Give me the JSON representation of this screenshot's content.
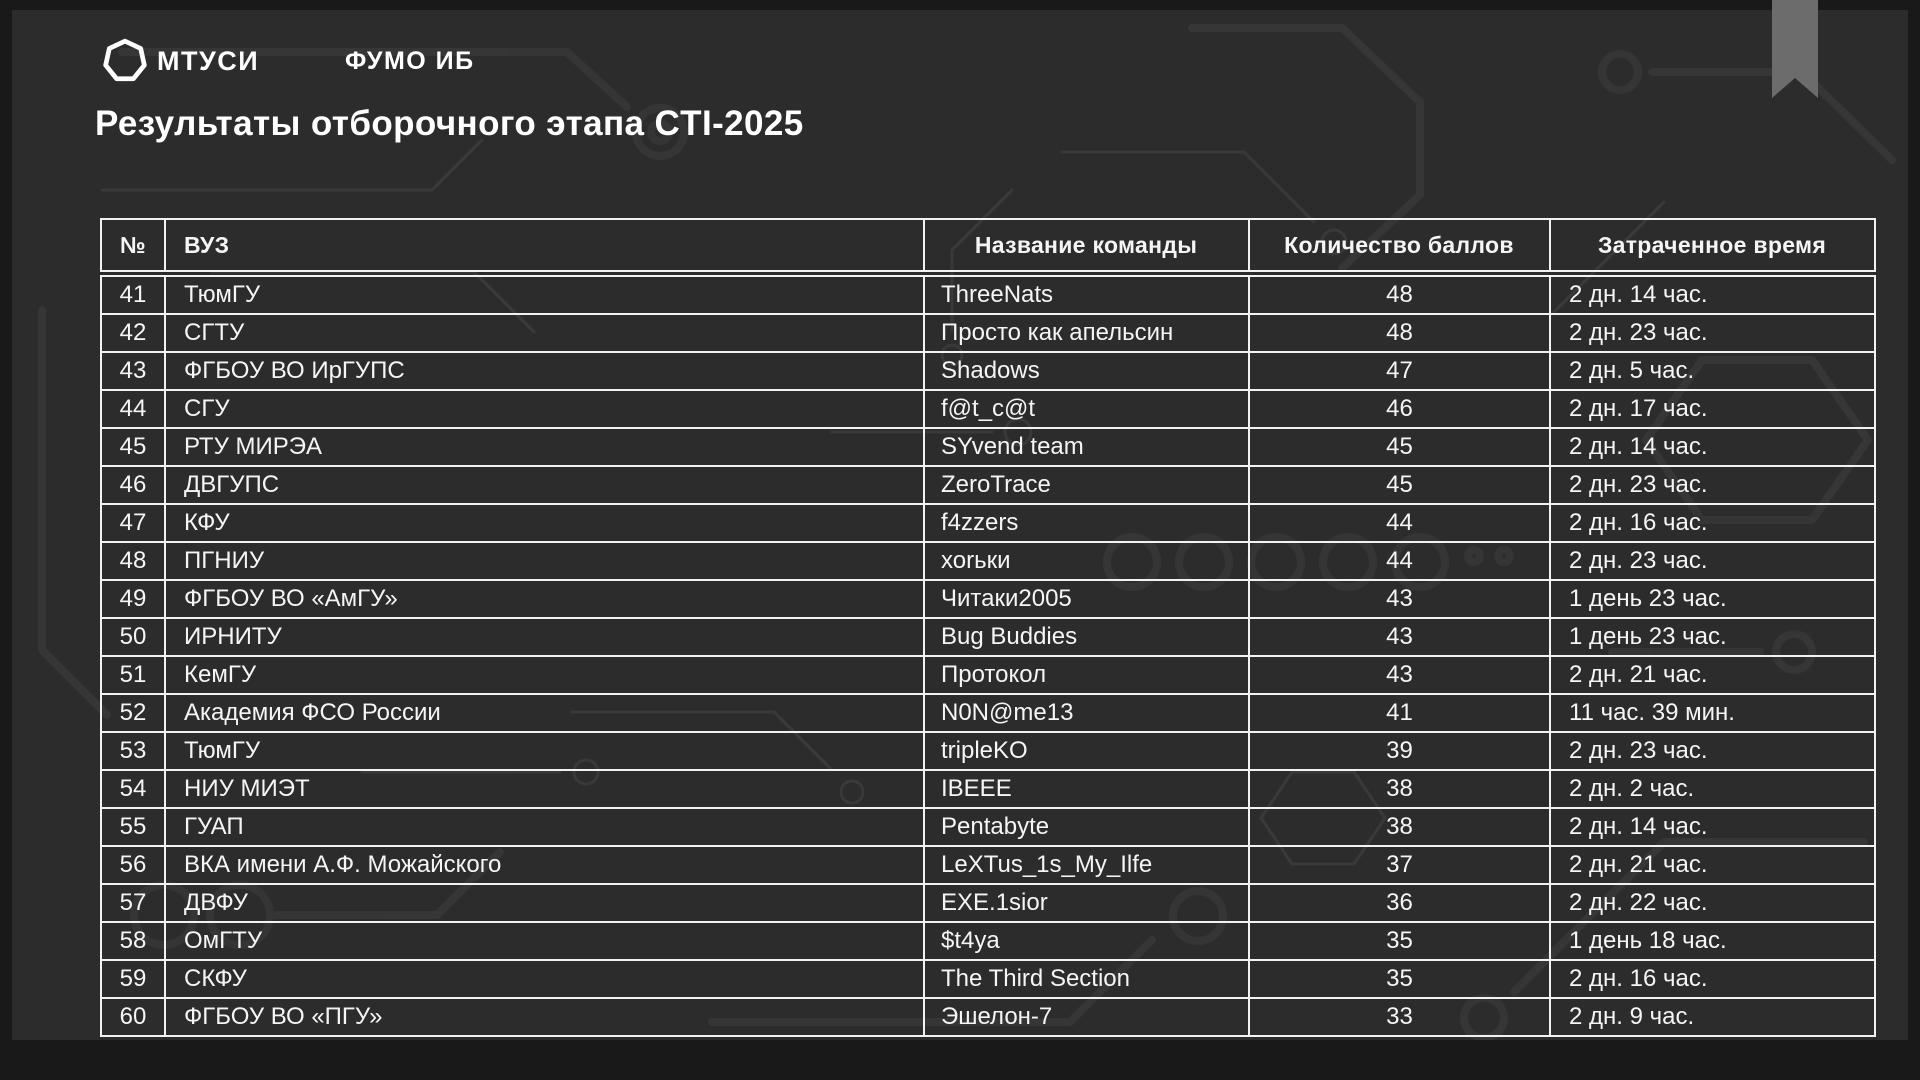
{
  "brand": {
    "logo_text": "МТУСИ",
    "division": "ФУМО ИБ"
  },
  "title": "Результаты отборочного этапа CTI-2025",
  "icons": {
    "logo": "heptagon-outline-icon",
    "bookmark": "bookmark-ribbon-icon"
  },
  "colors": {
    "background": "#2d2c2c",
    "frame": "#191919",
    "text": "#f5f5f5",
    "border": "#f2f2f2",
    "ribbon": "#6c6c6c",
    "pattern": "#3a3a3a"
  },
  "table": {
    "columns": {
      "num": "№",
      "university": "ВУЗ",
      "team": "Название команды",
      "score": "Количество баллов",
      "time": "Затраченное время"
    },
    "rows": [
      {
        "num": "41",
        "university": "ТюмГУ",
        "team": "ThreeNats",
        "score": "48",
        "time": "2 дн. 14 час."
      },
      {
        "num": "42",
        "university": "СГТУ",
        "team": "Просто как апельсин",
        "score": "48",
        "time": "2 дн. 23 час."
      },
      {
        "num": "43",
        "university": "ФГБОУ ВО ИрГУПС",
        "team": "Shadows",
        "score": "47",
        "time": "2 дн. 5 час."
      },
      {
        "num": "44",
        "university": "СГУ",
        "team": "f@t_c@t",
        "score": "46",
        "time": "2 дн. 17 час."
      },
      {
        "num": "45",
        "university": "РТУ МИРЭА",
        "team": "SYvend team",
        "score": "45",
        "time": "2 дн. 14 час."
      },
      {
        "num": "46",
        "university": "ДВГУПС",
        "team": "ZeroTrace",
        "score": "45",
        "time": "2 дн. 23 час."
      },
      {
        "num": "47",
        "university": "КФУ",
        "team": "f4zzers",
        "score": "44",
        "time": "2 дн. 16 час."
      },
      {
        "num": "48",
        "university": "ПГНИУ",
        "team": "хоrьки",
        "score": "44",
        "time": "2 дн. 23 час."
      },
      {
        "num": "49",
        "university": "ФГБОУ ВО «АмГУ»",
        "team": "Читаки2005",
        "score": "43",
        "time": "1 день 23 час."
      },
      {
        "num": "50",
        "university": "ИРНИТУ",
        "team": "Bug Buddies",
        "score": "43",
        "time": "1 день 23 час."
      },
      {
        "num": "51",
        "university": "КемГУ",
        "team": "Протокол",
        "score": "43",
        "time": "2 дн. 21 час."
      },
      {
        "num": "52",
        "university": "Академия ФСО России",
        "team": "N0N@me13",
        "score": "41",
        "time": "11 час. 39 мин."
      },
      {
        "num": "53",
        "university": "ТюмГУ",
        "team": "tripleKO",
        "score": "39",
        "time": "2 дн. 23 час."
      },
      {
        "num": "54",
        "university": "НИУ МИЭТ",
        "team": "IBEEE",
        "score": "38",
        "time": "2 дн. 2 час."
      },
      {
        "num": "55",
        "university": "ГУАП",
        "team": "Pentabyte",
        "score": "38",
        "time": "2 дн. 14 час."
      },
      {
        "num": "56",
        "university": "ВКА имени А.Ф. Можайского",
        "team": "LeXTus_1s_My_Ilfe",
        "score": "37",
        "time": "2 дн. 21 час."
      },
      {
        "num": "57",
        "university": "ДВФУ",
        "team": "EXE.1sior",
        "score": "36",
        "time": "2 дн. 22 час."
      },
      {
        "num": "58",
        "university": "ОмГТУ",
        "team": "$t4ya",
        "score": "35",
        "time": "1 день 18 час."
      },
      {
        "num": "59",
        "university": "СКФУ",
        "team": "The Third Section",
        "score": "35",
        "time": "2 дн. 16 час."
      },
      {
        "num": "60",
        "university": "ФГБОУ ВО «ПГУ»",
        "team": "Эшелон-7",
        "score": "33",
        "time": "2 дн. 9 час."
      }
    ]
  }
}
